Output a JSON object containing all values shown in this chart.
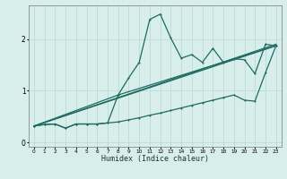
{
  "xlabel": "Humidex (Indice chaleur)",
  "ylabel": "",
  "xlim": [
    -0.5,
    23.5
  ],
  "ylim": [
    -0.08,
    2.65
  ],
  "bg_color": "#d8eeeb",
  "grid_color": "#c0ddd8",
  "line_color": "#1e6b63",
  "xticks": [
    0,
    1,
    2,
    3,
    4,
    5,
    6,
    7,
    8,
    9,
    10,
    11,
    12,
    13,
    14,
    15,
    16,
    17,
    18,
    19,
    20,
    21,
    22,
    23
  ],
  "yticks": [
    0,
    1,
    2
  ],
  "line1_x": [
    0,
    1,
    2,
    3,
    4,
    5,
    6,
    7,
    8,
    9,
    10,
    11,
    12,
    13,
    14,
    15,
    16,
    17,
    18,
    19,
    20,
    21,
    22,
    23
  ],
  "line1_y": [
    0.32,
    0.35,
    0.36,
    0.28,
    0.36,
    0.36,
    0.36,
    0.38,
    0.92,
    1.25,
    1.55,
    2.38,
    2.48,
    2.02,
    1.63,
    1.7,
    1.55,
    1.82,
    1.55,
    1.62,
    1.6,
    1.33,
    1.9,
    1.87
  ],
  "line2_x": [
    0,
    1,
    2,
    3,
    4,
    5,
    6,
    7,
    8,
    9,
    10,
    11,
    12,
    13,
    14,
    15,
    16,
    17,
    18,
    19,
    20,
    21,
    22,
    23
  ],
  "line2_y": [
    0.32,
    0.35,
    0.36,
    0.28,
    0.36,
    0.36,
    0.36,
    0.38,
    0.4,
    0.44,
    0.48,
    0.53,
    0.57,
    0.62,
    0.67,
    0.72,
    0.77,
    0.82,
    0.87,
    0.92,
    0.82,
    0.8,
    1.35,
    1.87
  ],
  "line3_x": [
    0,
    23
  ],
  "line3_y": [
    0.32,
    1.87
  ],
  "line4_x": [
    0,
    23
  ],
  "line4_y": [
    0.32,
    1.9
  ],
  "line5_x": [
    0,
    8,
    23
  ],
  "line5_y": [
    0.32,
    0.92,
    1.87
  ]
}
